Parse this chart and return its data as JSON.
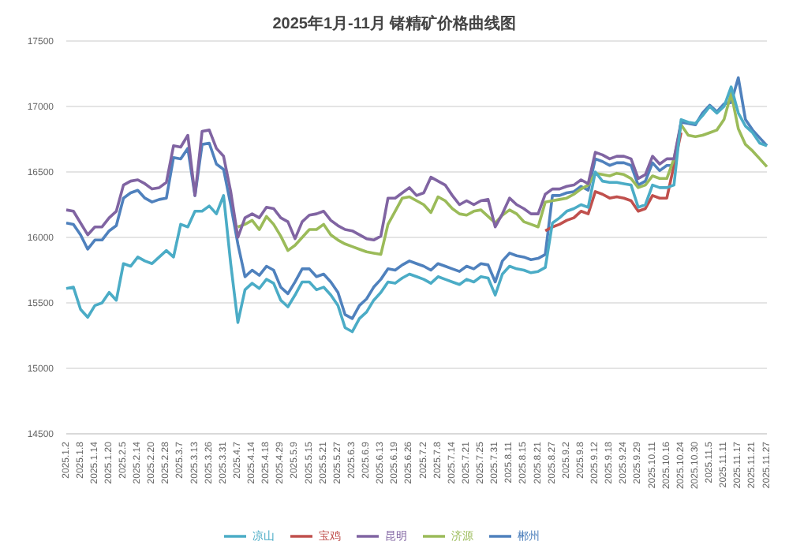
{
  "chart_data": {
    "type": "line",
    "title": "2025年1月-11月 锗精矿价格曲线图",
    "categories": [
      "2025.1.2",
      null,
      "2025.1.8",
      null,
      "2025.1.14",
      null,
      "2025.1.20",
      null,
      "2025.2.5",
      null,
      "2025.2.14",
      null,
      "2025.2.20",
      null,
      "2025.2.28",
      null,
      "2025.3.7",
      null,
      "2025.3.13",
      null,
      "2025.3.26",
      null,
      "2025.3.31",
      null,
      "2025.4.7",
      null,
      "2025.4.14",
      null,
      "2025.4.18",
      null,
      "2025.4.29",
      null,
      "2025.5.9",
      null,
      "2025.5.15",
      null,
      "2025.5.21",
      null,
      "2025.5.27",
      null,
      "2025.6.3",
      null,
      "2025.6.9",
      null,
      "2025.6.13",
      null,
      "2025.6.19",
      null,
      "2025.6.26",
      null,
      "2025.7.2",
      null,
      "2025.7.8",
      null,
      "2025.7.14",
      null,
      "2025.7.21",
      null,
      "2025.7.25",
      null,
      "2025.7.31",
      null,
      "2025.8.11",
      null,
      "2025.8.15",
      null,
      "2025.8.21",
      null,
      "2025.8.27",
      null,
      "2025.9.2",
      null,
      "2025.9.8",
      null,
      "2025.9.12",
      null,
      "2025.9.18",
      null,
      "2025.9.24",
      null,
      "2025.9.29",
      null,
      "2025.10.11",
      null,
      "2025.10.16",
      null,
      "2025.10.24",
      null,
      "2025.10.30",
      null,
      "2025.11.5",
      null,
      "2025.11.11",
      null,
      "2025.11.17",
      null,
      "2025.11.21",
      null,
      "2025.11.27"
    ],
    "series": [
      {
        "name": "郴州",
        "color": "#4f81bd",
        "values": [
          16110,
          16100,
          16020,
          15910,
          15980,
          15980,
          16050,
          16090,
          16300,
          16340,
          16360,
          16300,
          16270,
          16290,
          16300,
          16610,
          16600,
          16680,
          16320,
          16710,
          16720,
          16560,
          16520,
          16250,
          15950,
          15700,
          15750,
          15710,
          15780,
          15750,
          15620,
          15570,
          15660,
          15760,
          15760,
          15700,
          15720,
          15660,
          15580,
          15410,
          15380,
          15480,
          15530,
          15620,
          15680,
          15760,
          15750,
          15790,
          15820,
          15800,
          15780,
          15750,
          15800,
          15780,
          15760,
          15740,
          15780,
          15760,
          15800,
          15790,
          15660,
          15820,
          15880,
          15860,
          15850,
          15830,
          15840,
          15870,
          16320,
          16320,
          16340,
          16350,
          16390,
          16360,
          16600,
          16580,
          16550,
          16570,
          16570,
          16550,
          16400,
          16430,
          16570,
          16510,
          16550,
          16550,
          16880,
          16870,
          16860,
          16950,
          17010,
          16960,
          17020,
          17030,
          17220,
          16900,
          16820,
          16760,
          16700
        ]
      },
      {
        "name": "宝鸡",
        "color": "#c0504d",
        "values": [
          null,
          null,
          null,
          null,
          null,
          null,
          null,
          null,
          null,
          null,
          null,
          null,
          null,
          null,
          null,
          null,
          null,
          null,
          null,
          null,
          null,
          null,
          null,
          null,
          null,
          null,
          null,
          null,
          null,
          null,
          null,
          null,
          null,
          null,
          null,
          null,
          null,
          null,
          null,
          null,
          null,
          null,
          null,
          null,
          null,
          null,
          null,
          null,
          null,
          null,
          null,
          null,
          null,
          null,
          null,
          null,
          null,
          null,
          null,
          null,
          null,
          null,
          null,
          null,
          null,
          null,
          null,
          16050,
          16080,
          16100,
          16130,
          16150,
          16200,
          16180,
          16350,
          16330,
          16300,
          16310,
          16300,
          16280,
          16200,
          16220,
          16320,
          16300,
          16300,
          16550,
          16800,
          null,
          null,
          null,
          null,
          null,
          null,
          null,
          null,
          null,
          null,
          null,
          null
        ]
      },
      {
        "name": "济源",
        "color": "#9bbb59",
        "values": [
          null,
          null,
          null,
          null,
          null,
          null,
          null,
          null,
          null,
          null,
          null,
          null,
          null,
          null,
          null,
          null,
          null,
          null,
          null,
          null,
          null,
          null,
          null,
          null,
          16080,
          16100,
          16130,
          16060,
          16160,
          16100,
          16010,
          15900,
          15940,
          16000,
          16060,
          16060,
          16100,
          16020,
          15980,
          15950,
          15930,
          15910,
          15890,
          15880,
          15870,
          16100,
          16200,
          16300,
          16310,
          16280,
          16250,
          16190,
          16310,
          16280,
          16220,
          16180,
          16170,
          16200,
          16210,
          16160,
          16110,
          16170,
          16210,
          16180,
          16120,
          16100,
          16080,
          16270,
          16280,
          16290,
          16300,
          16330,
          16370,
          16400,
          16490,
          16480,
          16470,
          16490,
          16480,
          16450,
          16380,
          16400,
          16470,
          16450,
          16450,
          16600,
          16860,
          16780,
          16770,
          16780,
          16800,
          16820,
          16900,
          17100,
          16830,
          16710,
          16660,
          16600,
          16540
        ]
      },
      {
        "name": "昆明",
        "color": "#8064a2",
        "values": [
          16210,
          16200,
          16110,
          16020,
          16080,
          16080,
          16150,
          16200,
          16400,
          16430,
          16440,
          16410,
          16370,
          16380,
          16420,
          16700,
          16690,
          16780,
          16320,
          16810,
          16820,
          16680,
          16620,
          16350,
          16000,
          16150,
          16180,
          16150,
          16230,
          16220,
          16150,
          16120,
          15990,
          16120,
          16170,
          16180,
          16200,
          16130,
          16090,
          16060,
          16050,
          16020,
          15990,
          15980,
          16010,
          16300,
          16300,
          16340,
          16380,
          16320,
          16340,
          16460,
          16430,
          16400,
          16320,
          16250,
          16280,
          16250,
          16280,
          16290,
          16080,
          16180,
          16300,
          16250,
          16220,
          16180,
          16180,
          16330,
          16370,
          16370,
          16390,
          16400,
          16440,
          16410,
          16650,
          16630,
          16600,
          16620,
          16620,
          16600,
          16450,
          16480,
          16620,
          16560,
          16600,
          16600,
          16880,
          null,
          null,
          null,
          null,
          null,
          null,
          null,
          null,
          null,
          null,
          null,
          null
        ]
      },
      {
        "name": "凉山",
        "color": "#4bacc6",
        "values": [
          15610,
          15620,
          15450,
          15390,
          15480,
          15500,
          15580,
          15520,
          15800,
          15780,
          15850,
          15820,
          15800,
          15850,
          15900,
          15850,
          16100,
          16080,
          16200,
          16200,
          16240,
          16180,
          16320,
          15800,
          15350,
          15600,
          15650,
          15610,
          15680,
          15650,
          15520,
          15470,
          15560,
          15660,
          15660,
          15600,
          15620,
          15560,
          15480,
          15310,
          15280,
          15380,
          15430,
          15520,
          15580,
          15660,
          15650,
          15690,
          15720,
          15700,
          15680,
          15650,
          15700,
          15680,
          15660,
          15640,
          15680,
          15660,
          15700,
          15690,
          15560,
          15720,
          15780,
          15760,
          15750,
          15730,
          15740,
          15770,
          16110,
          16150,
          16200,
          16220,
          16250,
          16230,
          16500,
          16430,
          16420,
          16420,
          16410,
          16400,
          16230,
          16250,
          16400,
          16380,
          16380,
          16400,
          16900,
          16880,
          16870,
          16930,
          17000,
          16950,
          17000,
          17150,
          16950,
          16850,
          16800,
          16720,
          16700
        ]
      }
    ],
    "ylim": [
      14500,
      17500
    ],
    "yticks": [
      14500,
      15000,
      15500,
      16000,
      16500,
      17000,
      17500
    ],
    "grid": "y",
    "legend": "bottom",
    "marker": "none",
    "line_style": "solid"
  }
}
